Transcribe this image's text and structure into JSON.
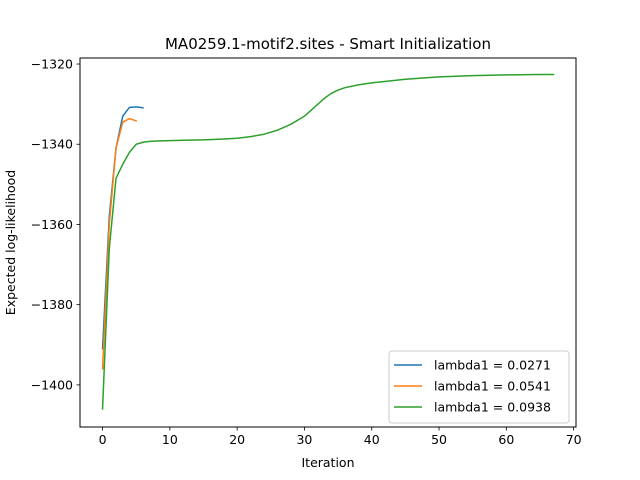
{
  "chart_data": {
    "type": "line",
    "title": "MA0259.1-motif2.sites - Smart Initialization",
    "xlabel": "Iteration",
    "ylabel": "Expected log-likelihood",
    "xlim": [
      -3.35,
      70.35
    ],
    "ylim": [
      -1410.5,
      -1318.5
    ],
    "xticks": [
      0,
      10,
      20,
      30,
      40,
      50,
      60,
      70
    ],
    "yticks": [
      -1400,
      -1380,
      -1360,
      -1340,
      -1320
    ],
    "grid": false,
    "legend_position": "lower right",
    "series": [
      {
        "name": "lambda1 = 0.0271",
        "color": "#1f77b4",
        "x": [
          0,
          1,
          2,
          3,
          4,
          5,
          6
        ],
        "y": [
          -1391,
          -1358,
          -1341,
          -1333,
          -1330.8,
          -1330.7,
          -1330.9
        ]
      },
      {
        "name": "lambda1 = 0.0541",
        "color": "#ff7f0e",
        "x": [
          0,
          1,
          2,
          3,
          4,
          5
        ],
        "y": [
          -1396,
          -1360,
          -1341,
          -1334.5,
          -1333.6,
          -1334.2
        ]
      },
      {
        "name": "lambda1 = 0.0938",
        "color": "#2ca02c",
        "x": [
          0,
          1,
          2,
          3,
          4,
          5,
          6,
          7,
          8,
          10,
          12,
          15,
          18,
          20,
          22,
          24,
          26,
          28,
          30,
          31,
          32,
          33,
          34,
          35,
          36,
          38,
          40,
          45,
          50,
          55,
          60,
          65,
          67
        ],
        "y": [
          -1406,
          -1366,
          -1348.5,
          -1345,
          -1342,
          -1340,
          -1339.5,
          -1339.3,
          -1339.2,
          -1339.1,
          -1339.0,
          -1338.9,
          -1338.7,
          -1338.5,
          -1338.1,
          -1337.5,
          -1336.5,
          -1335.0,
          -1333.0,
          -1331.5,
          -1330.0,
          -1328.5,
          -1327.3,
          -1326.5,
          -1325.9,
          -1325.2,
          -1324.7,
          -1323.8,
          -1323.2,
          -1322.9,
          -1322.7,
          -1322.6,
          -1322.6
        ]
      }
    ]
  }
}
